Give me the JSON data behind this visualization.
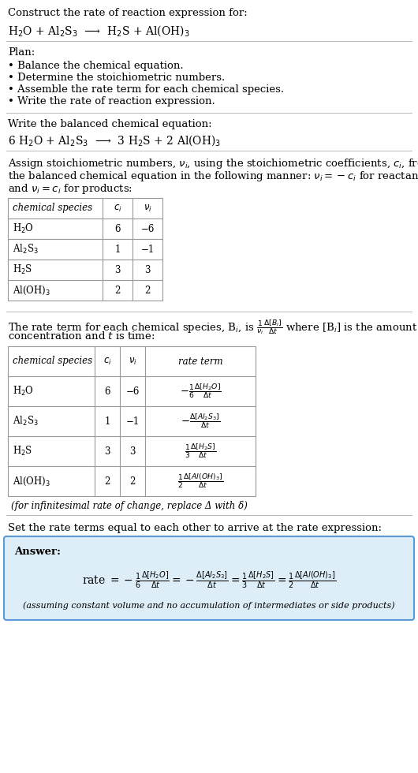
{
  "bg_color": "#ffffff",
  "text_color": "#000000",
  "title_line1": "Construct the rate of reaction expression for:",
  "reaction_unbalanced": "H$_2$O + Al$_2$S$_3$  ⟶  H$_2$S + Al(OH)$_3$",
  "plan_header": "Plan:",
  "plan_items": [
    "• Balance the chemical equation.",
    "• Determine the stoichiometric numbers.",
    "• Assemble the rate term for each chemical species.",
    "• Write the rate of reaction expression."
  ],
  "balanced_header": "Write the balanced chemical equation:",
  "reaction_balanced": "6 H$_2$O + Al$_2$S$_3$  ⟶  3 H$_2$S + 2 Al(OH)$_3$",
  "stoich_header_lines": [
    "Assign stoichiometric numbers, $\\nu_i$, using the stoichiometric coefficients, $c_i$, from",
    "the balanced chemical equation in the following manner: $\\nu_i = -c_i$ for reactants",
    "and $\\nu_i = c_i$ for products:"
  ],
  "table1_cols": [
    "chemical species",
    "$c_i$",
    "$\\nu_i$"
  ],
  "table1_rows": [
    [
      "H$_2$O",
      "6",
      "−6"
    ],
    [
      "Al$_2$S$_3$",
      "1",
      "−1"
    ],
    [
      "H$_2$S",
      "3",
      "3"
    ],
    [
      "Al(OH)$_3$",
      "2",
      "2"
    ]
  ],
  "rate_term_header_lines": [
    "The rate term for each chemical species, B$_i$, is $\\frac{1}{\\nu_i}\\frac{\\Delta[B_i]}{\\Delta t}$ where [B$_i$] is the amount",
    "concentration and $t$ is time:"
  ],
  "table2_cols": [
    "chemical species",
    "$c_i$",
    "$\\nu_i$",
    "rate term"
  ],
  "table2_rows": [
    [
      "H$_2$O",
      "6",
      "−6",
      "$-\\frac{1}{6}\\frac{\\Delta[H_2O]}{\\Delta t}$"
    ],
    [
      "Al$_2$S$_3$",
      "1",
      "−1",
      "$-\\frac{\\Delta[Al_2S_3]}{\\Delta t}$"
    ],
    [
      "H$_2$S",
      "3",
      "3",
      "$\\frac{1}{3}\\frac{\\Delta[H_2S]}{\\Delta t}$"
    ],
    [
      "Al(OH)$_3$",
      "2",
      "2",
      "$\\frac{1}{2}\\frac{\\Delta[Al(OH)_3]}{\\Delta t}$"
    ]
  ],
  "infinitesimal_note": "(for infinitesimal rate of change, replace Δ with δ)",
  "set_equal_header": "Set the rate terms equal to each other to arrive at the rate expression:",
  "answer_box_color": "#ddeef8",
  "answer_border_color": "#5b9bd5",
  "answer_label": "Answer:",
  "answer_rate": "rate $= -\\frac{1}{6}\\frac{\\Delta[H_2O]}{\\Delta t} = -\\frac{\\Delta[Al_2S_3]}{\\Delta t} = \\frac{1}{3}\\frac{\\Delta[H_2S]}{\\Delta t} = \\frac{1}{2}\\frac{\\Delta[Al(OH)_3]}{\\Delta t}$",
  "answer_note": "(assuming constant volume and no accumulation of intermediates or side products)"
}
